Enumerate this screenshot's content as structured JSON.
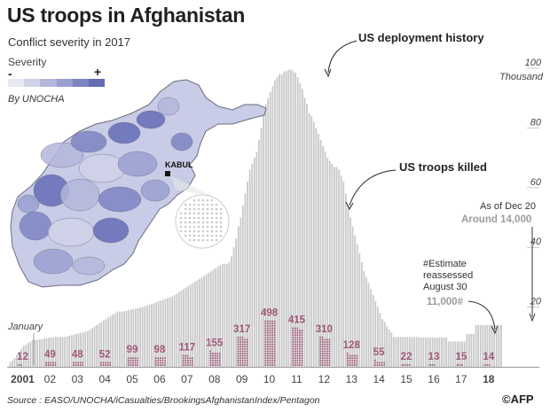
{
  "header": {
    "title": "US troops in Afghanistan",
    "subtitle": "Conflict severity in 2017"
  },
  "legend": {
    "severity_label": "Severity",
    "min_symbol": "-",
    "max_symbol": "+",
    "scale_colors": [
      "#e8e8f3",
      "#cfd1e8",
      "#b3b7dc",
      "#9aa0d0",
      "#7d84c2",
      "#646cb6"
    ],
    "attribution": "By UNOCHA"
  },
  "map": {
    "city_label": "KABUL",
    "country_fill": "#c9cce6",
    "dark_fill": "#7c83c2",
    "border_color": "#6b6b80"
  },
  "chart_data": {
    "type": "bar",
    "title": "",
    "deployment_series_label": "US deployment history",
    "killed_series_label": "US troops killed",
    "y_unit_label": "Thousand",
    "ylim": [
      0,
      100
    ],
    "y_ticks": [
      "100",
      "80",
      "60",
      "40",
      "20"
    ],
    "y_tick_values": [
      100,
      80,
      60,
      40,
      20
    ],
    "x_tick_labels": [
      "2001",
      "02",
      "03",
      "04",
      "05",
      "06",
      "07",
      "08",
      "09",
      "10",
      "11",
      "12",
      "13",
      "14",
      "15",
      "16",
      "17",
      "18"
    ],
    "start_marker": "January",
    "killed": [
      12,
      49,
      48,
      52,
      99,
      98,
      117,
      155,
      317,
      498,
      415,
      310,
      128,
      55,
      22,
      13,
      15,
      14
    ],
    "deployment_thousands": [
      [
        1.5,
        2,
        3,
        4,
        5,
        6,
        7,
        7.5,
        8,
        8.5,
        9,
        9
      ],
      [
        9,
        9.2,
        9.3,
        9.5,
        9.6,
        9.7,
        9.8,
        9.8,
        10,
        10,
        10,
        10
      ],
      [
        10,
        10.2,
        10.4,
        10.6,
        10.8,
        11,
        11.2,
        11.4,
        11.6,
        11.8,
        12,
        12.3
      ],
      [
        13,
        13.5,
        14,
        14.5,
        15,
        15.5,
        16,
        16.5,
        17,
        17.5,
        18,
        18.5
      ],
      [
        18.5,
        18.5,
        18.6,
        18.8,
        19,
        19.2,
        19.4,
        19.5,
        19.6,
        19.8,
        20,
        20.3
      ],
      [
        20.5,
        20.8,
        21,
        21.3,
        21.6,
        21.9,
        22.2,
        22.5,
        22.8,
        23,
        23.3,
        23.6
      ],
      [
        24,
        24.5,
        25,
        25.5,
        26,
        26.5,
        27,
        27.5,
        28,
        28.5,
        29,
        29.5
      ],
      [
        30,
        30.5,
        31,
        31.5,
        32,
        32.5,
        33,
        33.5,
        34,
        34.5,
        34.5,
        34.5
      ],
      [
        35,
        37,
        40,
        43,
        47,
        50,
        54,
        58,
        62,
        66,
        68,
        70
      ],
      [
        72,
        76,
        80,
        84,
        88,
        90,
        92,
        94,
        96,
        97,
        98,
        98
      ],
      [
        99,
        99,
        99.5,
        99.5,
        99,
        98.5,
        97,
        95,
        93,
        90,
        88,
        85
      ],
      [
        84,
        82,
        80,
        78,
        76,
        74,
        72,
        70,
        69,
        68,
        67,
        67
      ],
      [
        66,
        64,
        62,
        58,
        54,
        50,
        47,
        44,
        41,
        38,
        35,
        32
      ],
      [
        30,
        28,
        26,
        24,
        22,
        20,
        18,
        16,
        15,
        13.5,
        12.5,
        11.5
      ],
      [
        10,
        10,
        10,
        10,
        10,
        10,
        10,
        10,
        10,
        10,
        10,
        10
      ],
      [
        9.8,
        9.8,
        9.8,
        9.8,
        9.8,
        9.8,
        9.8,
        9.8,
        9.8,
        9.8,
        9.8,
        9.8
      ],
      [
        8.5,
        8.5,
        8.5,
        8.5,
        8.5,
        8.5,
        8.5,
        8.5,
        11,
        11,
        11,
        11
      ],
      [
        14,
        14,
        14,
        14,
        14,
        14,
        14,
        14,
        14,
        14,
        14,
        14
      ]
    ],
    "annotations": {
      "estimate_note": [
        "#Estimate",
        "reassessed",
        "August 30"
      ],
      "estimate_value": "11,000#",
      "as_of_date": "As of Dec 20",
      "as_of_value": "Around 14,000"
    },
    "colors": {
      "deployment": "#c8c8c8",
      "killed": "#a0587a",
      "axis_text": "#444444",
      "value_gray": "#9b9b9b"
    }
  },
  "footer": {
    "source": "Source : EASO/UNOCHA/iCasualties/BrookingsAfghanistanIndex/Pentagon",
    "credit": "©AFP"
  }
}
